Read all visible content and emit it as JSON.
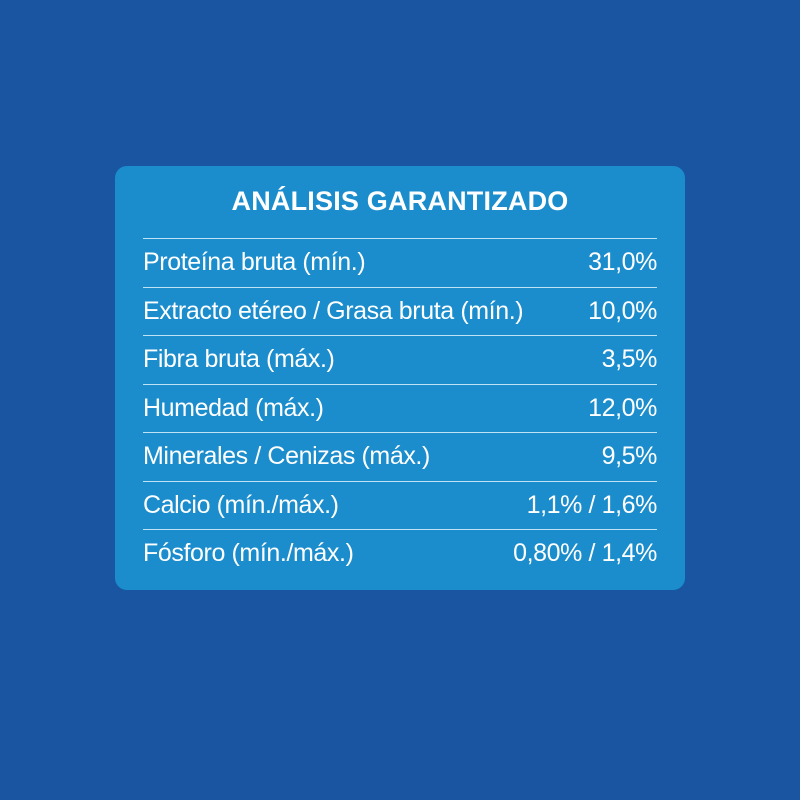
{
  "title": "ANÁLISIS GARANTIZADO",
  "colors": {
    "background": "#1a55a1",
    "panel": "#1b8dcc",
    "text": "#ffffff"
  },
  "rows": [
    {
      "label": "Proteína bruta (mín.)",
      "value": "31,0%"
    },
    {
      "label": "Extracto etéreo / Grasa bruta (mín.)",
      "value": "10,0%"
    },
    {
      "label": "Fibra bruta (máx.)",
      "value": "3,5%"
    },
    {
      "label": "Humedad (máx.)",
      "value": "12,0%"
    },
    {
      "label": "Minerales / Cenizas (máx.)",
      "value": "9,5%"
    },
    {
      "label": "Calcio (mín./máx.)",
      "value": "1,1% / 1,6%"
    },
    {
      "label": "Fósforo (mín./máx.)",
      "value": "0,80% / 1,4%"
    }
  ]
}
